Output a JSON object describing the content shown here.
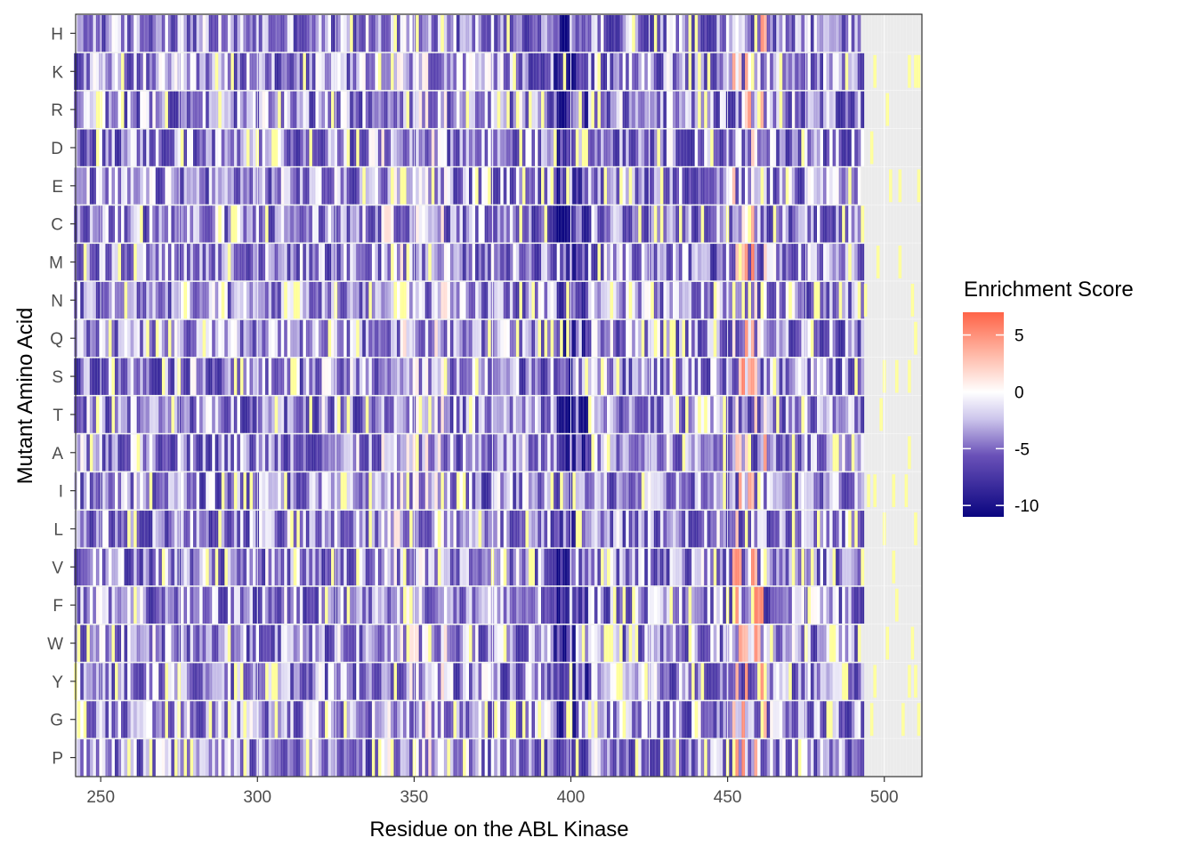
{
  "chart_data": {
    "type": "heatmap",
    "title": "",
    "xlabel": "Residue on the ABL Kinase",
    "ylabel": "Mutant Amino Acid",
    "x_range": [
      242,
      512
    ],
    "x_ticks": [
      250,
      300,
      350,
      400,
      450,
      500
    ],
    "x_tick_labels": [
      "250",
      "300",
      "350",
      "400",
      "450",
      "500"
    ],
    "data_residue_range": [
      242,
      493
    ],
    "rows": [
      "H",
      "K",
      "R",
      "D",
      "E",
      "C",
      "M",
      "N",
      "Q",
      "S",
      "T",
      "A",
      "I",
      "L",
      "V",
      "F",
      "W",
      "Y",
      "G",
      "P"
    ],
    "value_note": "Per-cell enrichment scores are approximated from the color gradient; strongly depleted region near residues 395-405, enriched (red) clusters near 455-462; residues beyond ~493 are mostly missing (grey) with sparse pale-yellow cells.",
    "legend": {
      "title": "Enrichment Score",
      "ticks": [
        5,
        0,
        -5,
        -10
      ],
      "tick_labels": [
        "5",
        "0",
        "-5",
        "-10"
      ],
      "range": [
        -11,
        7
      ],
      "placement": "right"
    },
    "colors": {
      "low": "#0a0580",
      "mid_low": "#6a51b8",
      "mid": "#ffffff",
      "high": "#ff6347",
      "missing": "#ebebeb",
      "special": "#ffff99",
      "grid": "#ffffff",
      "panel_border": "#333333"
    }
  }
}
